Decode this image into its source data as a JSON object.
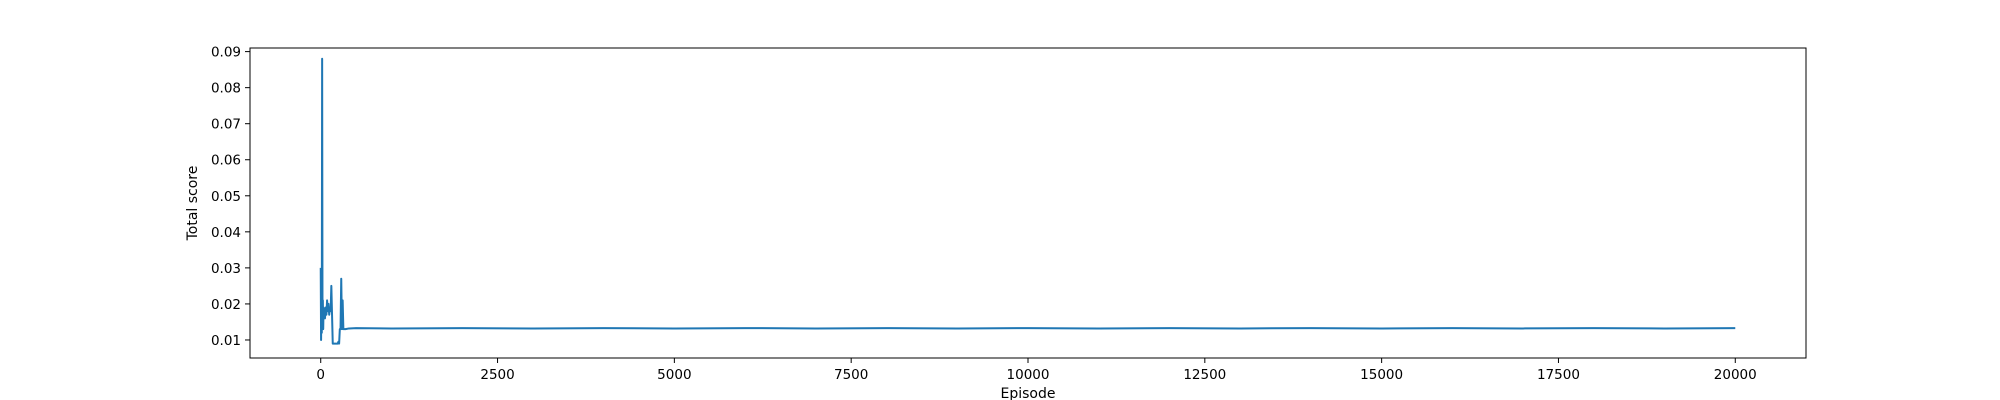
{
  "chart_data": {
    "type": "line",
    "title": "",
    "xlabel": "Episode",
    "ylabel": "Total score",
    "xlim": [
      -1000,
      21000
    ],
    "ylim": [
      0.005,
      0.091
    ],
    "xticks": [
      0,
      2500,
      5000,
      7500,
      10000,
      12500,
      15000,
      17500,
      20000
    ],
    "xtick_labels": [
      "0",
      "2500",
      "5000",
      "7500",
      "10000",
      "12500",
      "15000",
      "17500",
      "20000"
    ],
    "yticks": [
      0.01,
      0.02,
      0.03,
      0.04,
      0.05,
      0.06,
      0.07,
      0.08,
      0.09
    ],
    "ytick_labels": [
      "0.01",
      "0.02",
      "0.03",
      "0.04",
      "0.05",
      "0.06",
      "0.07",
      "0.08",
      "0.09"
    ],
    "grid": false,
    "legend": "none",
    "series": [
      {
        "color": "#1f77b4",
        "x": [
          0,
          5,
          10,
          15,
          20,
          25,
          30,
          35,
          40,
          50,
          60,
          70,
          80,
          90,
          100,
          110,
          120,
          130,
          140,
          150,
          160,
          170,
          180,
          190,
          200,
          210,
          220,
          230,
          240,
          250,
          260,
          270,
          280,
          290,
          300,
          310,
          320,
          330,
          340,
          350,
          400,
          500,
          1000,
          2000,
          3000,
          4000,
          5000,
          6000,
          7000,
          8000,
          9000,
          10000,
          11000,
          12000,
          13000,
          14000,
          15000,
          16000,
          17000,
          18000,
          19000,
          20000
        ],
        "y": [
          0.03,
          0.01,
          0.022,
          0.012,
          0.088,
          0.015,
          0.021,
          0.013,
          0.019,
          0.017,
          0.016,
          0.019,
          0.017,
          0.021,
          0.018,
          0.02,
          0.017,
          0.019,
          0.018,
          0.025,
          0.017,
          0.009,
          0.009,
          0.009,
          0.009,
          0.009,
          0.009,
          0.009,
          0.009,
          0.0095,
          0.009,
          0.013,
          0.013,
          0.027,
          0.013,
          0.021,
          0.013,
          0.013,
          0.013,
          0.013,
          0.0132,
          0.0133,
          0.0132,
          0.0133,
          0.0132,
          0.0133,
          0.0132,
          0.0133,
          0.0132,
          0.0133,
          0.0132,
          0.0133,
          0.0132,
          0.0133,
          0.0132,
          0.0133,
          0.0132,
          0.0133,
          0.0132,
          0.0133,
          0.0132,
          0.0133
        ]
      }
    ]
  }
}
